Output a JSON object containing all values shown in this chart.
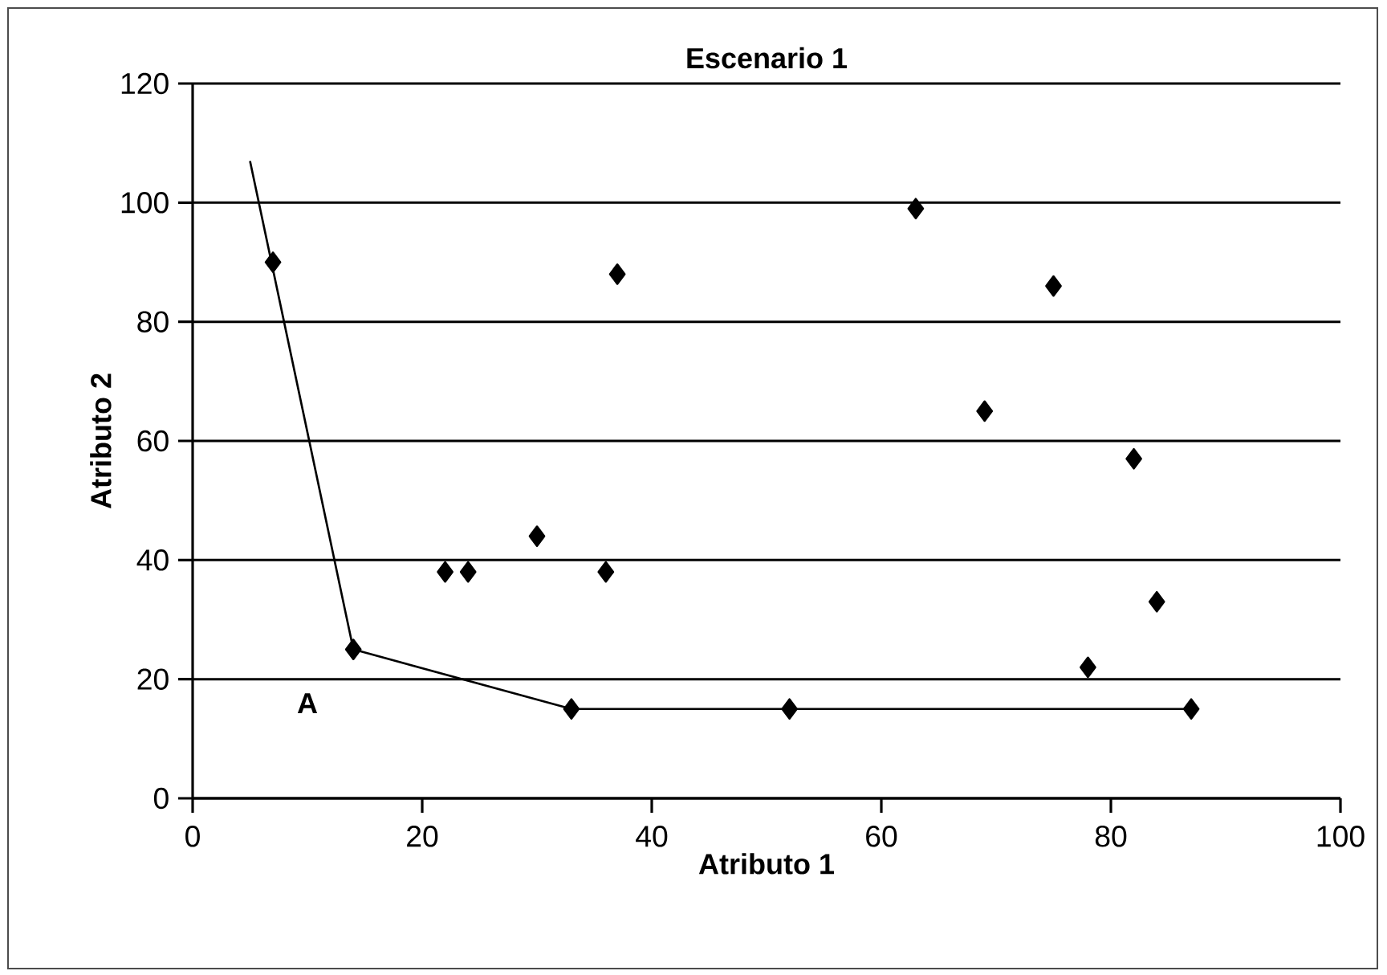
{
  "chart_data": {
    "type": "scatter",
    "title": "Escenario 1",
    "xlabel": "Atributo 1",
    "ylabel": "Atributo 2",
    "xlim": [
      0,
      100
    ],
    "ylim": [
      0,
      120
    ],
    "xticks": [
      0,
      20,
      40,
      60,
      80,
      100
    ],
    "yticks": [
      0,
      20,
      40,
      60,
      80,
      100,
      120
    ],
    "grid": "y",
    "marker": "diamond",
    "series": [
      {
        "color": "#000000",
        "x": [
          7,
          14,
          22,
          24,
          30,
          36,
          37,
          33,
          52,
          63,
          75,
          69,
          82,
          84,
          78,
          87
        ],
        "values": [
          90,
          25,
          38,
          38,
          44,
          38,
          88,
          15,
          15,
          99,
          86,
          65,
          57,
          33,
          22,
          15
        ]
      },
      {
        "type": "line",
        "color": "#000000",
        "marker": "none",
        "x": [
          5,
          14,
          33,
          52,
          87
        ],
        "values": [
          107,
          25,
          15,
          15,
          15
        ]
      }
    ],
    "annotations": [
      "A"
    ]
  }
}
